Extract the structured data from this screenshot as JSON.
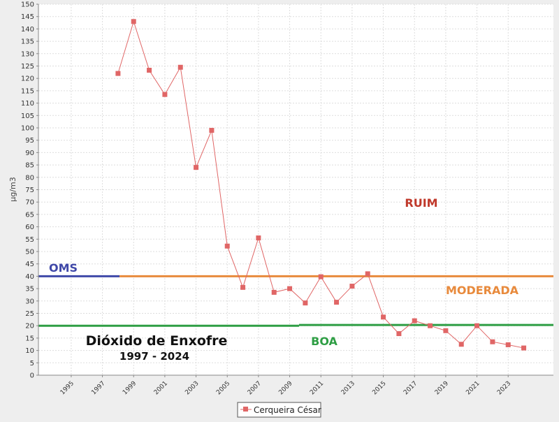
{
  "chart_data": {
    "type": "line",
    "ylabel": "µg/m3",
    "ylim": [
      0,
      150
    ],
    "y_ticks": [
      0,
      5,
      10,
      15,
      20,
      25,
      30,
      35,
      40,
      45,
      50,
      55,
      60,
      65,
      70,
      75,
      80,
      85,
      90,
      95,
      100,
      105,
      110,
      115,
      120,
      125,
      130,
      135,
      140,
      145,
      150
    ],
    "xlim": [
      1992.9,
      2025.9
    ],
    "x_ticks": [
      "1995",
      "1997",
      "1999",
      "2001",
      "2003",
      "2005",
      "2007",
      "2009",
      "2011",
      "2013",
      "2015",
      "2017",
      "2019",
      "2021",
      "2023"
    ],
    "grid": true,
    "legend_position": "bottom-center",
    "series": [
      {
        "name": "Cerqueira César",
        "color": "#e06666",
        "x": [
          1998,
          1999,
          2000,
          2001,
          2002,
          2003,
          2004,
          2005,
          2006,
          2007,
          2008,
          2009,
          2010,
          2011,
          2012,
          2013,
          2014,
          2015,
          2016,
          2017,
          2018,
          2019,
          2020,
          2021,
          2022,
          2023,
          2024
        ],
        "values": [
          122,
          143,
          123.3,
          113.5,
          124.5,
          84,
          99,
          52.2,
          35.5,
          55.5,
          33.5,
          35,
          29.2,
          39.8,
          29.5,
          36,
          41,
          23.5,
          16.8,
          22,
          20,
          18,
          12.5,
          20,
          13.5,
          12.3,
          11
        ]
      }
    ],
    "reference_lines": [
      {
        "label": "OMS",
        "y": 40,
        "x_range": [
          1992.9,
          1998.1
        ],
        "color": "#3f48a8"
      },
      {
        "label": "",
        "y": 40,
        "x_range": [
          1998.1,
          2025.9
        ],
        "color": "#e88a3c"
      },
      {
        "label": "",
        "y": 20,
        "x_range": [
          1992.9,
          2009.6
        ],
        "color": "#2e9e44"
      },
      {
        "label": "",
        "y": 20.3,
        "x_range": [
          2009.6,
          2025.9
        ],
        "color": "#2e9e44"
      }
    ],
    "annotations": [
      {
        "text": "RUIM",
        "color": "#c0392b"
      },
      {
        "text": "MODERADA",
        "color": "#e88a3c"
      },
      {
        "text": "BOA",
        "color": "#2e9e44"
      }
    ],
    "title": "Dióxido de Enxofre",
    "subtitle": "1997 - 2024"
  }
}
